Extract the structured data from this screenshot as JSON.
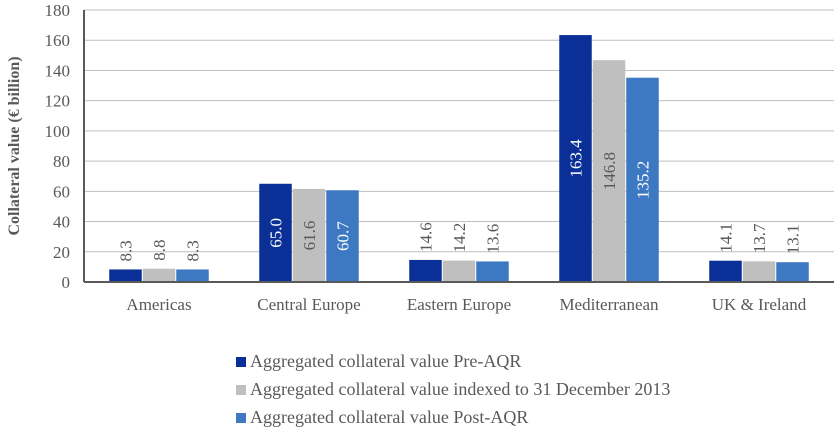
{
  "chart_data": {
    "type": "bar",
    "title": "",
    "xlabel": "",
    "ylabel": "Collateral value (€ billion)",
    "ylim": [
      0,
      180
    ],
    "yticks": [
      0,
      20,
      40,
      60,
      80,
      100,
      120,
      140,
      160,
      180
    ],
    "grid": true,
    "legend_position": "bottom",
    "categories": [
      "Americas",
      "Central Europe",
      "Eastern Europe",
      "Mediterranean",
      "UK & Ireland"
    ],
    "series": [
      {
        "name": "Aggregated collateral value Pre-AQR",
        "color": "#0A2F96",
        "label_color": "#ffffff",
        "values": [
          8.3,
          65.0,
          14.6,
          163.4,
          14.1
        ],
        "labels": [
          "8.3",
          "65.0",
          "14.6",
          "163.4",
          "14.1"
        ]
      },
      {
        "name": "Aggregated collateral value indexed to 31 December 2013",
        "color": "#BFBFBF",
        "label_color": "#595959",
        "values": [
          8.8,
          61.6,
          14.2,
          146.8,
          13.7
        ],
        "labels": [
          "8.8",
          "61.6",
          "14.2",
          "146.8",
          "13.7"
        ]
      },
      {
        "name": "Aggregated collateral value Post-AQR",
        "color": "#3D78C2",
        "label_color": "#ffffff",
        "values": [
          8.3,
          60.7,
          13.6,
          135.2,
          13.1
        ],
        "labels": [
          "8.3",
          "60.7",
          "13.6",
          "135.2",
          "13.1"
        ]
      }
    ]
  }
}
